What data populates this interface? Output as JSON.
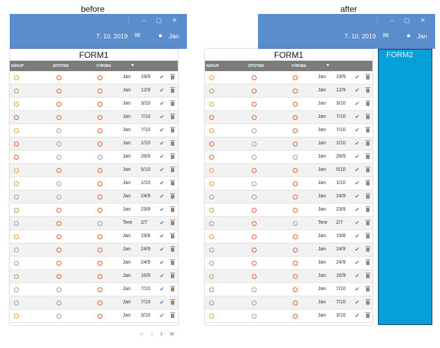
{
  "captions": {
    "before": "before",
    "after": "after"
  },
  "appbar": {
    "date": "7. 10. 2019",
    "user": "Jan"
  },
  "form1": {
    "title": "FORM1",
    "headers": {
      "nakup": "NÁKUP",
      "sitotisk": "SÍTOTISK",
      "vyroba": "VÝROBA"
    },
    "rows": [
      {
        "d": [
          "#f0a030",
          "#e05a2b",
          "#e05a2b"
        ],
        "name": "Jan",
        "date": "19/9"
      },
      {
        "d": [
          "#7ab648",
          "#e05a2b",
          "#e05a2b"
        ],
        "name": "Jan",
        "date": "12/9"
      },
      {
        "d": [
          "#f0a030",
          "#e05a2b",
          "#e05a2b"
        ],
        "name": "Jan",
        "date": "3/10"
      },
      {
        "d": [
          "#e05a2b",
          "#e05a2b",
          "#e05a2b"
        ],
        "name": "Jan",
        "date": "7/10"
      },
      {
        "d": [
          "#f0a030",
          "#9a9a9a",
          "#e05a2b"
        ],
        "name": "Jan",
        "date": "7/10"
      },
      {
        "d": [
          "#e05a2b",
          "#9a9a9a",
          "#e05a2b"
        ],
        "name": "Jan",
        "date": "1/10"
      },
      {
        "d": [
          "#e05a2b",
          "#9a9a9a",
          "#9a9a9a"
        ],
        "name": "Jan",
        "date": "26/9"
      },
      {
        "d": [
          "#f0a030",
          "#e05a2b",
          "#e05a2b"
        ],
        "name": "Jan",
        "date": "5/10"
      },
      {
        "d": [
          "#f0a030",
          "#9a9a9a",
          "#e05a2b"
        ],
        "name": "Jan",
        "date": "1/10"
      },
      {
        "d": [
          "#9a9a9a",
          "#9a9a9a",
          "#e05a2b"
        ],
        "name": "Jan",
        "date": "24/9"
      },
      {
        "d": [
          "#7ab648",
          "#e05a2b",
          "#e05a2b"
        ],
        "name": "Jan",
        "date": "23/9"
      },
      {
        "d": [
          "#9a9a9a",
          "#e05a2b",
          "#9a9a9a"
        ],
        "name": "Tere",
        "date": "2/7"
      },
      {
        "d": [
          "#f0a030",
          "#e05a2b",
          "#e05a2b"
        ],
        "name": "Jan",
        "date": "19/8"
      },
      {
        "d": [
          "#9a9a9a",
          "#e05a2b",
          "#e05a2b"
        ],
        "name": "Jan",
        "date": "24/9"
      },
      {
        "d": [
          "#9a9a9a",
          "#e05a2b",
          "#e05a2b"
        ],
        "name": "Jan",
        "date": "24/9"
      },
      {
        "d": [
          "#7ab648",
          "#e05a2b",
          "#e05a2b"
        ],
        "name": "Jan",
        "date": "16/9"
      },
      {
        "d": [
          "#9a9a9a",
          "#9a9a9a",
          "#e05a2b"
        ],
        "name": "Jan",
        "date": "7/10"
      },
      {
        "d": [
          "#9a9a9a",
          "#7ab648",
          "#e05a2b"
        ],
        "name": "Jan",
        "date": "7/10"
      },
      {
        "d": [
          "#f0a030",
          "#9a9a9a",
          "#e05a2b"
        ],
        "name": "Jan",
        "date": "3/10"
      }
    ]
  },
  "form2": {
    "title": "FORM2"
  },
  "icons": {
    "mail": "mail-icon",
    "user": "user-icon",
    "check": "check-icon",
    "trash": "trash-icon",
    "pager": [
      "first-page-icon",
      "prev-page-icon",
      "next-page-icon",
      "last-page-icon"
    ]
  }
}
